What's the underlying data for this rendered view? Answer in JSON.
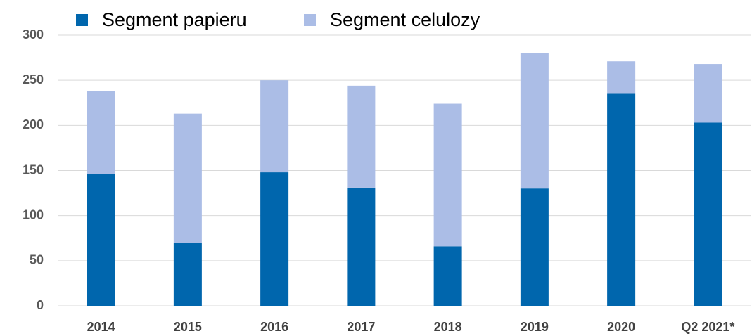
{
  "chart_data": {
    "type": "stacked-bar",
    "categories": [
      "2014",
      "2015",
      "2016",
      "2017",
      "2018",
      "2019",
      "2020",
      "Q2 2021*"
    ],
    "series": [
      {
        "name": "Segment papieru",
        "color": "#0066ad",
        "values": [
          146,
          70,
          148,
          131,
          66,
          130,
          235,
          203
        ]
      },
      {
        "name": "Segment celulozy",
        "color": "#abbde6",
        "values": [
          92,
          143,
          102,
          113,
          158,
          150,
          36,
          65
        ]
      }
    ],
    "ylim": [
      0,
      300
    ],
    "yticks": [
      0,
      50,
      100,
      150,
      200,
      250,
      300
    ],
    "grid": true,
    "legend": "top"
  }
}
